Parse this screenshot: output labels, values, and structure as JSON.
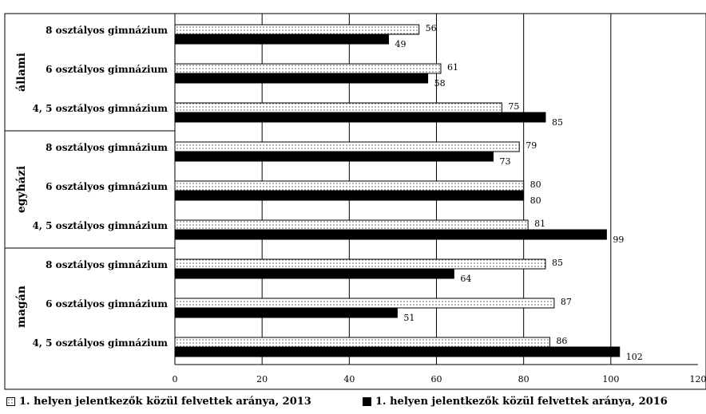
{
  "chart_data": {
    "type": "bar",
    "orientation": "horizontal",
    "groups": [
      {
        "name": "állami",
        "categories": [
          "8 osztályos gimnázium",
          "6 osztályos gimnázium",
          "4, 5 osztályos gimnázium"
        ]
      },
      {
        "name": "egyházi",
        "categories": [
          "8 osztályos gimnázium",
          "6 osztályos gimnázium",
          "4, 5 osztályos gimnázium"
        ]
      },
      {
        "name": "magán",
        "categories": [
          "8 osztályos gimnázium",
          "6 osztályos gimnázium",
          "4, 5 osztályos gimnázium"
        ]
      }
    ],
    "series": [
      {
        "name": "1. helyen jelentkezők közül felvettek aránya, 2013",
        "pattern": "dotted",
        "values": [
          56,
          61,
          75,
          79,
          80,
          81,
          85,
          87,
          86
        ]
      },
      {
        "name": "1. helyen jelentkezők közül felvettek aránya, 2016",
        "color": "#000000",
        "values": [
          49,
          58,
          85,
          73,
          80,
          99,
          64,
          51,
          102
        ]
      }
    ],
    "xlim": [
      0,
      120
    ],
    "xticks": [
      "0",
      "20",
      "40",
      "60",
      "80",
      "100",
      "120"
    ],
    "grid": "vertical",
    "legend": "bottom"
  }
}
